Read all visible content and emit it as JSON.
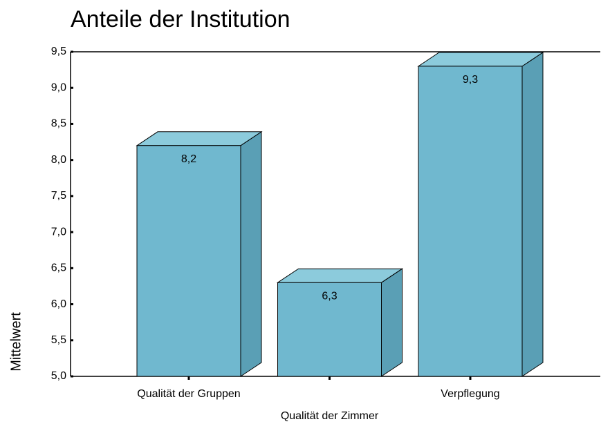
{
  "chart_data": {
    "type": "bar3d",
    "title": "Anteile der Institution",
    "y_label": "Mittelwert",
    "categories": [
      "Qualität der Gruppen",
      "Qualität der Zimmer",
      "Verpflegung"
    ],
    "values": [
      8.2,
      6.3,
      9.3
    ],
    "value_labels": [
      "8,2",
      "6,3",
      "9,3"
    ],
    "color": "#70b8cf",
    "ylim": [
      5.0,
      9.5
    ],
    "yticks": [
      {
        "value": 5.0,
        "label": "5,0"
      },
      {
        "value": 5.5,
        "label": "5,5"
      },
      {
        "value": 6.0,
        "label": "6,0"
      },
      {
        "value": 6.5,
        "label": "6,5"
      },
      {
        "value": 7.0,
        "label": "7,0"
      },
      {
        "value": 7.5,
        "label": "7,5"
      },
      {
        "value": 8.0,
        "label": "8,0"
      },
      {
        "value": 8.5,
        "label": "8,5"
      },
      {
        "value": 9.0,
        "label": "9,0"
      },
      {
        "value": 9.5,
        "label": "9,5"
      }
    ],
    "grid": false
  }
}
